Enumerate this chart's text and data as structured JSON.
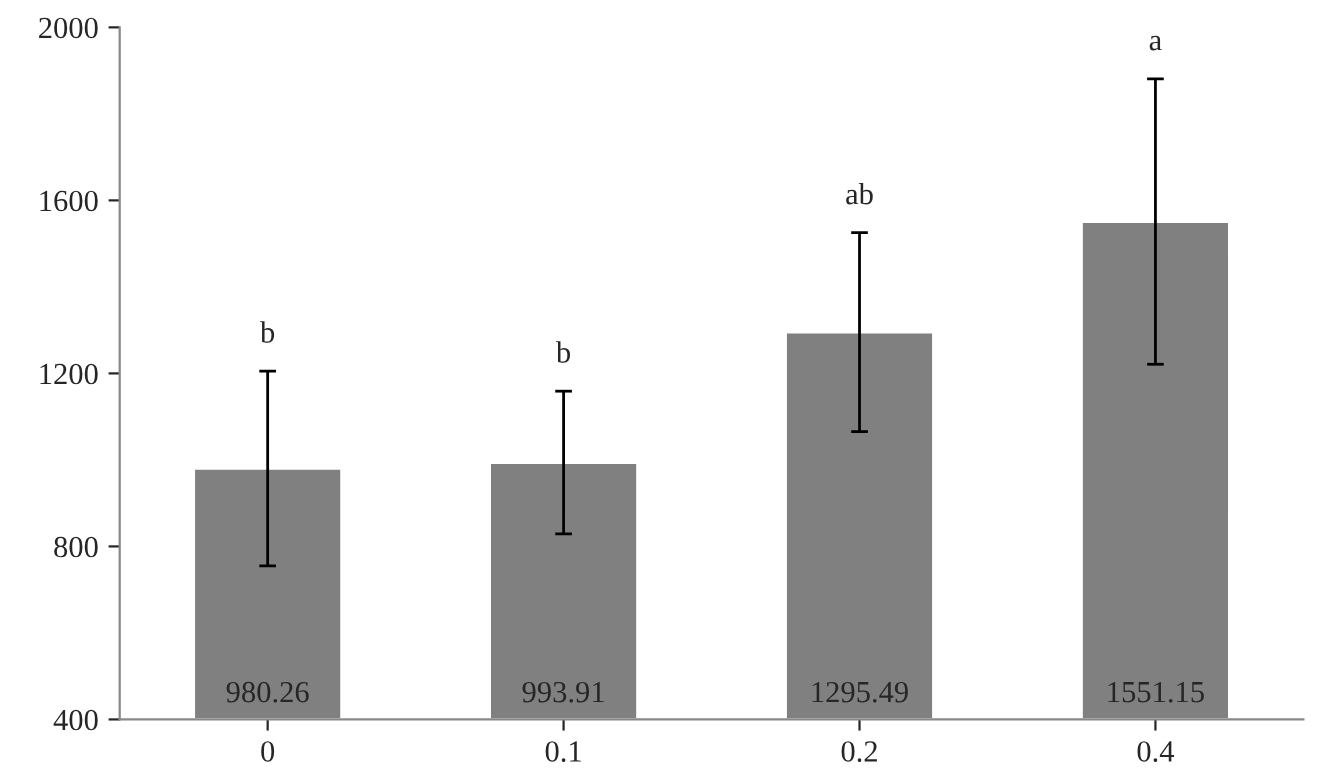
{
  "chart_data": {
    "type": "bar",
    "categories": [
      "0",
      "0.1",
      "0.2",
      "0.4"
    ],
    "values": [
      980.26,
      993.91,
      1295.49,
      1551.15
    ],
    "errors": [
      225,
      165,
      230,
      330
    ],
    "color": "#808080",
    "data_labels": true,
    "ylim": [
      400,
      2000
    ],
    "yticks": [
      400,
      800,
      1200,
      1600,
      2000
    ],
    "grid": false,
    "annotations": [
      {
        "text": "b",
        "x": "0",
        "y": 1205
      },
      {
        "text": "b",
        "x": "0.1",
        "y": 1159
      },
      {
        "text": "ab",
        "x": "0.2",
        "y": 1525
      },
      {
        "text": "a",
        "x": "0.4",
        "y": 1881
      }
    ]
  }
}
